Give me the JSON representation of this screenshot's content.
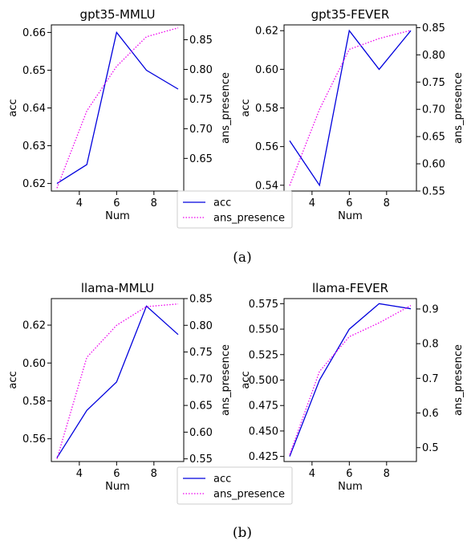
{
  "colors": {
    "acc": "#0000dd",
    "ans_presence": "#ee00ee",
    "axis": "#000000"
  },
  "legend": {
    "items": [
      "acc",
      "ans_presence"
    ],
    "placement": "between-panels-bottom"
  },
  "captions": [
    "(a)",
    "(b)"
  ],
  "chart_data": [
    {
      "type": "line",
      "title": "gpt35-MMLU",
      "xlabel": "Num",
      "ylabel": "acc",
      "y2label": "ans_presence",
      "x": [
        2.8,
        4.4,
        6,
        7.6,
        9.3
      ],
      "series": [
        {
          "name": "acc",
          "axis": "left",
          "style": "solid",
          "values": [
            0.62,
            0.625,
            0.66,
            0.65,
            0.645
          ]
        },
        {
          "name": "ans_presence",
          "axis": "right",
          "style": "dotted",
          "values": [
            0.6,
            0.73,
            0.805,
            0.855,
            0.87
          ]
        }
      ],
      "xlim": [
        2.5,
        9.6
      ],
      "ylim": [
        0.618,
        0.662
      ],
      "y2lim": [
        0.595,
        0.875
      ],
      "xticks": [
        4,
        6,
        8
      ],
      "yticks": [
        0.62,
        0.63,
        0.64,
        0.65,
        0.66
      ],
      "y2ticks": [
        0.65,
        0.7,
        0.75,
        0.8,
        0.85
      ],
      "xticklabels": [
        "4",
        "6",
        "8"
      ],
      "yticklabels": [
        "0.62",
        "0.63",
        "0.64",
        "0.65",
        "0.66"
      ],
      "y2ticklabels": [
        "0.65",
        "0.70",
        "0.75",
        "0.80",
        "0.85"
      ],
      "grid": false
    },
    {
      "type": "line",
      "title": "gpt35-FEVER",
      "xlabel": "Num",
      "ylabel": "acc",
      "y2label": "ans_presence",
      "x": [
        2.8,
        4.4,
        6,
        7.6,
        9.3
      ],
      "series": [
        {
          "name": "acc",
          "axis": "left",
          "style": "solid",
          "values": [
            0.563,
            0.54,
            0.62,
            0.6,
            0.62
          ]
        },
        {
          "name": "ans_presence",
          "axis": "right",
          "style": "dotted",
          "values": [
            0.56,
            0.7,
            0.81,
            0.83,
            0.845
          ]
        }
      ],
      "xlim": [
        2.5,
        9.6
      ],
      "ylim": [
        0.537,
        0.623
      ],
      "y2lim": [
        0.55,
        0.855
      ],
      "xticks": [
        4,
        6,
        8
      ],
      "yticks": [
        0.54,
        0.56,
        0.58,
        0.6,
        0.62
      ],
      "y2ticks": [
        0.55,
        0.6,
        0.65,
        0.7,
        0.75,
        0.8,
        0.85
      ],
      "xticklabels": [
        "4",
        "6",
        "8"
      ],
      "yticklabels": [
        "0.54",
        "0.56",
        "0.58",
        "0.60",
        "0.62"
      ],
      "y2ticklabels": [
        "0.55",
        "0.60",
        "0.65",
        "0.70",
        "0.75",
        "0.80",
        "0.85"
      ],
      "grid": false
    },
    {
      "type": "line",
      "title": "llama-MMLU",
      "xlabel": "Num",
      "ylabel": "acc",
      "y2label": "ans_presence",
      "x": [
        2.8,
        4.4,
        6,
        7.6,
        9.3
      ],
      "series": [
        {
          "name": "acc",
          "axis": "left",
          "style": "solid",
          "values": [
            0.55,
            0.575,
            0.59,
            0.63,
            0.615
          ]
        },
        {
          "name": "ans_presence",
          "axis": "right",
          "style": "dotted",
          "values": [
            0.55,
            0.74,
            0.8,
            0.835,
            0.84
          ]
        }
      ],
      "xlim": [
        2.5,
        9.6
      ],
      "ylim": [
        0.548,
        0.634
      ],
      "y2lim": [
        0.545,
        0.85
      ],
      "xticks": [
        4,
        6,
        8
      ],
      "yticks": [
        0.56,
        0.58,
        0.6,
        0.62
      ],
      "y2ticks": [
        0.55,
        0.6,
        0.65,
        0.7,
        0.75,
        0.8,
        0.85
      ],
      "xticklabels": [
        "4",
        "6",
        "8"
      ],
      "yticklabels": [
        "0.56",
        "0.58",
        "0.60",
        "0.62"
      ],
      "y2ticklabels": [
        "0.55",
        "0.60",
        "0.65",
        "0.70",
        "0.75",
        "0.80",
        "0.85"
      ],
      "grid": false
    },
    {
      "type": "line",
      "title": "llama-FEVER",
      "xlabel": "Num",
      "ylabel": "acc",
      "y2label": "ans_presence",
      "x": [
        2.8,
        4.4,
        6,
        7.6,
        9.3
      ],
      "series": [
        {
          "name": "acc",
          "axis": "left",
          "style": "solid",
          "values": [
            0.425,
            0.5,
            0.55,
            0.575,
            0.57
          ]
        },
        {
          "name": "ans_presence",
          "axis": "right",
          "style": "dotted",
          "values": [
            0.48,
            0.72,
            0.82,
            0.86,
            0.91
          ]
        }
      ],
      "xlim": [
        2.5,
        9.6
      ],
      "ylim": [
        0.42,
        0.58
      ],
      "y2lim": [
        0.46,
        0.93
      ],
      "xticks": [
        4,
        6,
        8
      ],
      "yticks": [
        0.425,
        0.45,
        0.475,
        0.5,
        0.525,
        0.55,
        0.575
      ],
      "y2ticks": [
        0.5,
        0.6,
        0.7,
        0.8,
        0.9
      ],
      "xticklabels": [
        "4",
        "6",
        "8"
      ],
      "yticklabels": [
        "0.425",
        "0.450",
        "0.475",
        "0.500",
        "0.525",
        "0.550",
        "0.575"
      ],
      "y2ticklabels": [
        "0.5",
        "0.6",
        "0.7",
        "0.8",
        "0.9"
      ],
      "grid": false
    }
  ]
}
